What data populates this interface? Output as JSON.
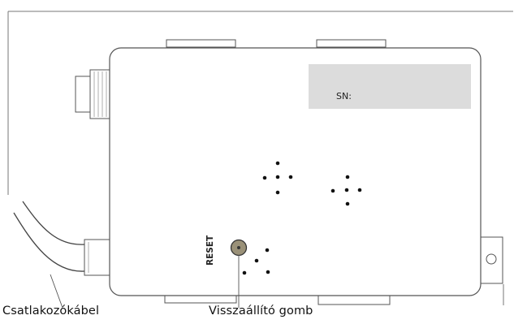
{
  "device": {
    "serial_label": "SN:",
    "reset_label": "RESET"
  },
  "callouts": {
    "cable": "Csatlakozókábel",
    "reset_button": "Visszaállító gomb"
  },
  "colors": {
    "outline": "#555555",
    "frame": "#777777",
    "serial_panel": "#dcdcdc",
    "reset_button": "#9a9178",
    "vent_hole": "#111111"
  }
}
